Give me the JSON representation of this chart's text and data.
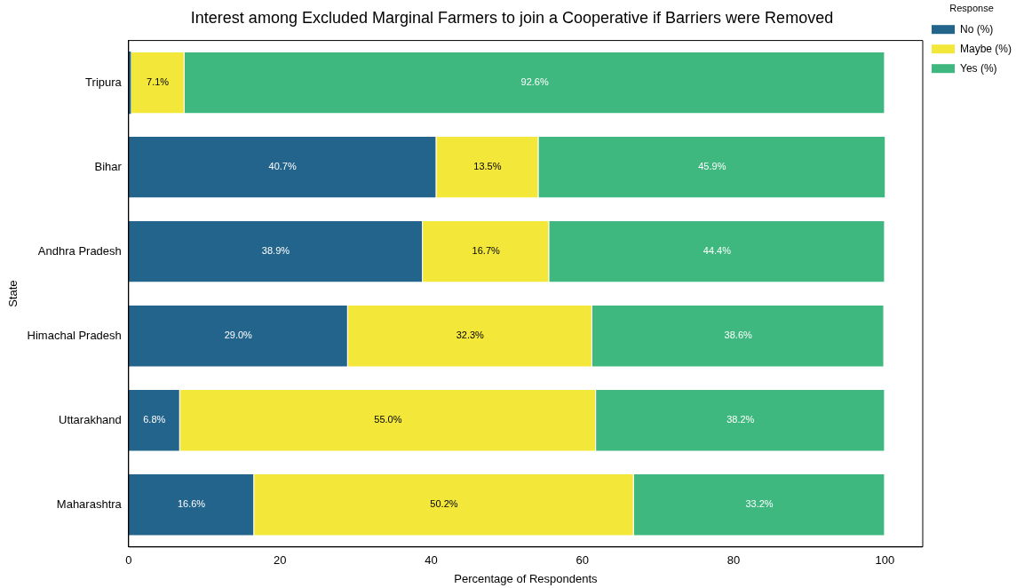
{
  "chart_data": {
    "type": "bar",
    "title": "Interest among Excluded Marginal Farmers to join a Cooperative if Barriers were Removed",
    "xlabel": "Percentage of Respondents",
    "ylabel": "State",
    "legend_title": "Response",
    "categories": [
      "Tripura",
      "Bihar",
      "Andhra Pradesh",
      "Himachal Pradesh",
      "Uttarakhand",
      "Maharashtra"
    ],
    "orientation": "horizontal",
    "stacked": true,
    "legend": "top right",
    "xlim": [
      0,
      105
    ],
    "xticks": [
      0,
      20,
      40,
      60,
      80,
      100
    ],
    "series": [
      {
        "name": "No (%)",
        "color": "#23648c",
        "values": [
          0.3,
          40.7,
          38.9,
          29.0,
          6.8,
          16.6
        ],
        "value_labels": [
          null,
          "40.7%",
          "38.9%",
          "29.0%",
          "6.8%",
          "16.6%"
        ]
      },
      {
        "name": "Maybe (%)",
        "color": "#f3e73a",
        "values": [
          7.1,
          13.5,
          16.7,
          32.3,
          55.0,
          50.2
        ],
        "value_labels": [
          "7.1%",
          "13.5%",
          "16.7%",
          "32.3%",
          "55.0%",
          "50.2%"
        ]
      },
      {
        "name": "Yes (%)",
        "color": "#3fb87f",
        "values": [
          92.6,
          45.9,
          44.4,
          38.6,
          38.2,
          33.2
        ],
        "value_labels": [
          "92.6%",
          "45.9%",
          "44.4%",
          "38.6%",
          "38.2%",
          "33.2%"
        ]
      }
    ]
  }
}
